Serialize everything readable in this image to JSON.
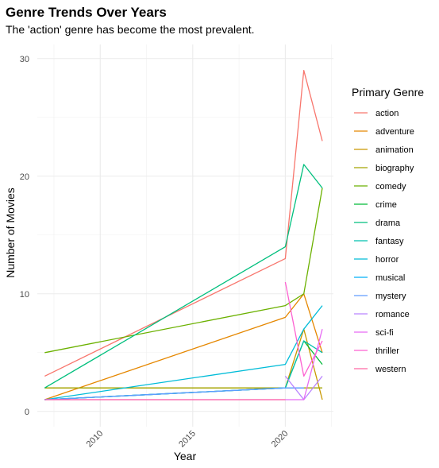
{
  "chart_data": {
    "type": "line",
    "title": "Genre Trends Over Years",
    "subtitle": "The 'action' genre has become the most prevalent.",
    "xlabel": "Year",
    "ylabel": "Number of Movies",
    "xlim": [
      2006.6,
      2022.6
    ],
    "ylim": [
      -1.3,
      31.2
    ],
    "x_ticks": [
      2010,
      2015,
      2020
    ],
    "y_ticks": [
      0,
      10,
      20,
      30
    ],
    "grid": true,
    "legend_title": "Primary Genre",
    "legend_position": "right",
    "series": [
      {
        "name": "action",
        "color": "#F8766D",
        "x": [
          2007,
          2020,
          2021,
          2022
        ],
        "y": [
          3,
          13,
          29,
          23
        ]
      },
      {
        "name": "adventure",
        "color": "#E58700",
        "x": [
          2007,
          2020,
          2021,
          2022
        ],
        "y": [
          1,
          8,
          10,
          5
        ]
      },
      {
        "name": "animation",
        "color": "#C99800",
        "x": [
          2007,
          2020,
          2021,
          2022
        ],
        "y": [
          2,
          2,
          7,
          1
        ]
      },
      {
        "name": "biography",
        "color": "#A3A500",
        "x": [
          2007,
          2020,
          2021,
          2022
        ],
        "y": [
          2,
          2,
          2,
          2
        ]
      },
      {
        "name": "comedy",
        "color": "#6BB100",
        "x": [
          2007,
          2020,
          2021,
          2022
        ],
        "y": [
          5,
          9,
          10,
          19
        ]
      },
      {
        "name": "crime",
        "color": "#00BA38",
        "x": [
          2007,
          2020,
          2021,
          2022
        ],
        "y": [
          1,
          2,
          6,
          4
        ]
      },
      {
        "name": "drama",
        "color": "#00BF7D",
        "x": [
          2007,
          2020,
          2021,
          2022
        ],
        "y": [
          2,
          14,
          21,
          19
        ]
      },
      {
        "name": "fantasy",
        "color": "#00C0AF",
        "x": [
          2007,
          2020,
          2021,
          2022
        ],
        "y": [
          1,
          2,
          6,
          5
        ]
      },
      {
        "name": "horror",
        "color": "#00BCD8",
        "x": [
          2007,
          2020,
          2021,
          2022
        ],
        "y": [
          1,
          4,
          7,
          9
        ]
      },
      {
        "name": "musical",
        "color": "#00B0F6",
        "x": [
          2007,
          2020,
          2021
        ],
        "y": [
          1,
          2,
          2
        ]
      },
      {
        "name": "mystery",
        "color": "#619CFF",
        "x": [
          2007,
          2020,
          2021
        ],
        "y": [
          1,
          2,
          2
        ]
      },
      {
        "name": "romance",
        "color": "#B983FF",
        "x": [
          2020,
          2021,
          2022
        ],
        "y": [
          3,
          1,
          3
        ]
      },
      {
        "name": "sci-fi",
        "color": "#E76BF3",
        "x": [
          2007,
          2020,
          2021,
          2022
        ],
        "y": [
          1,
          1,
          1,
          7
        ]
      },
      {
        "name": "thriller",
        "color": "#FD61D1",
        "x": [
          2020,
          2021,
          2022
        ],
        "y": [
          11,
          3,
          6
        ]
      },
      {
        "name": "western",
        "color": "#FF67A4",
        "x": [
          2007,
          2020
        ],
        "y": [
          1,
          1
        ]
      }
    ]
  }
}
